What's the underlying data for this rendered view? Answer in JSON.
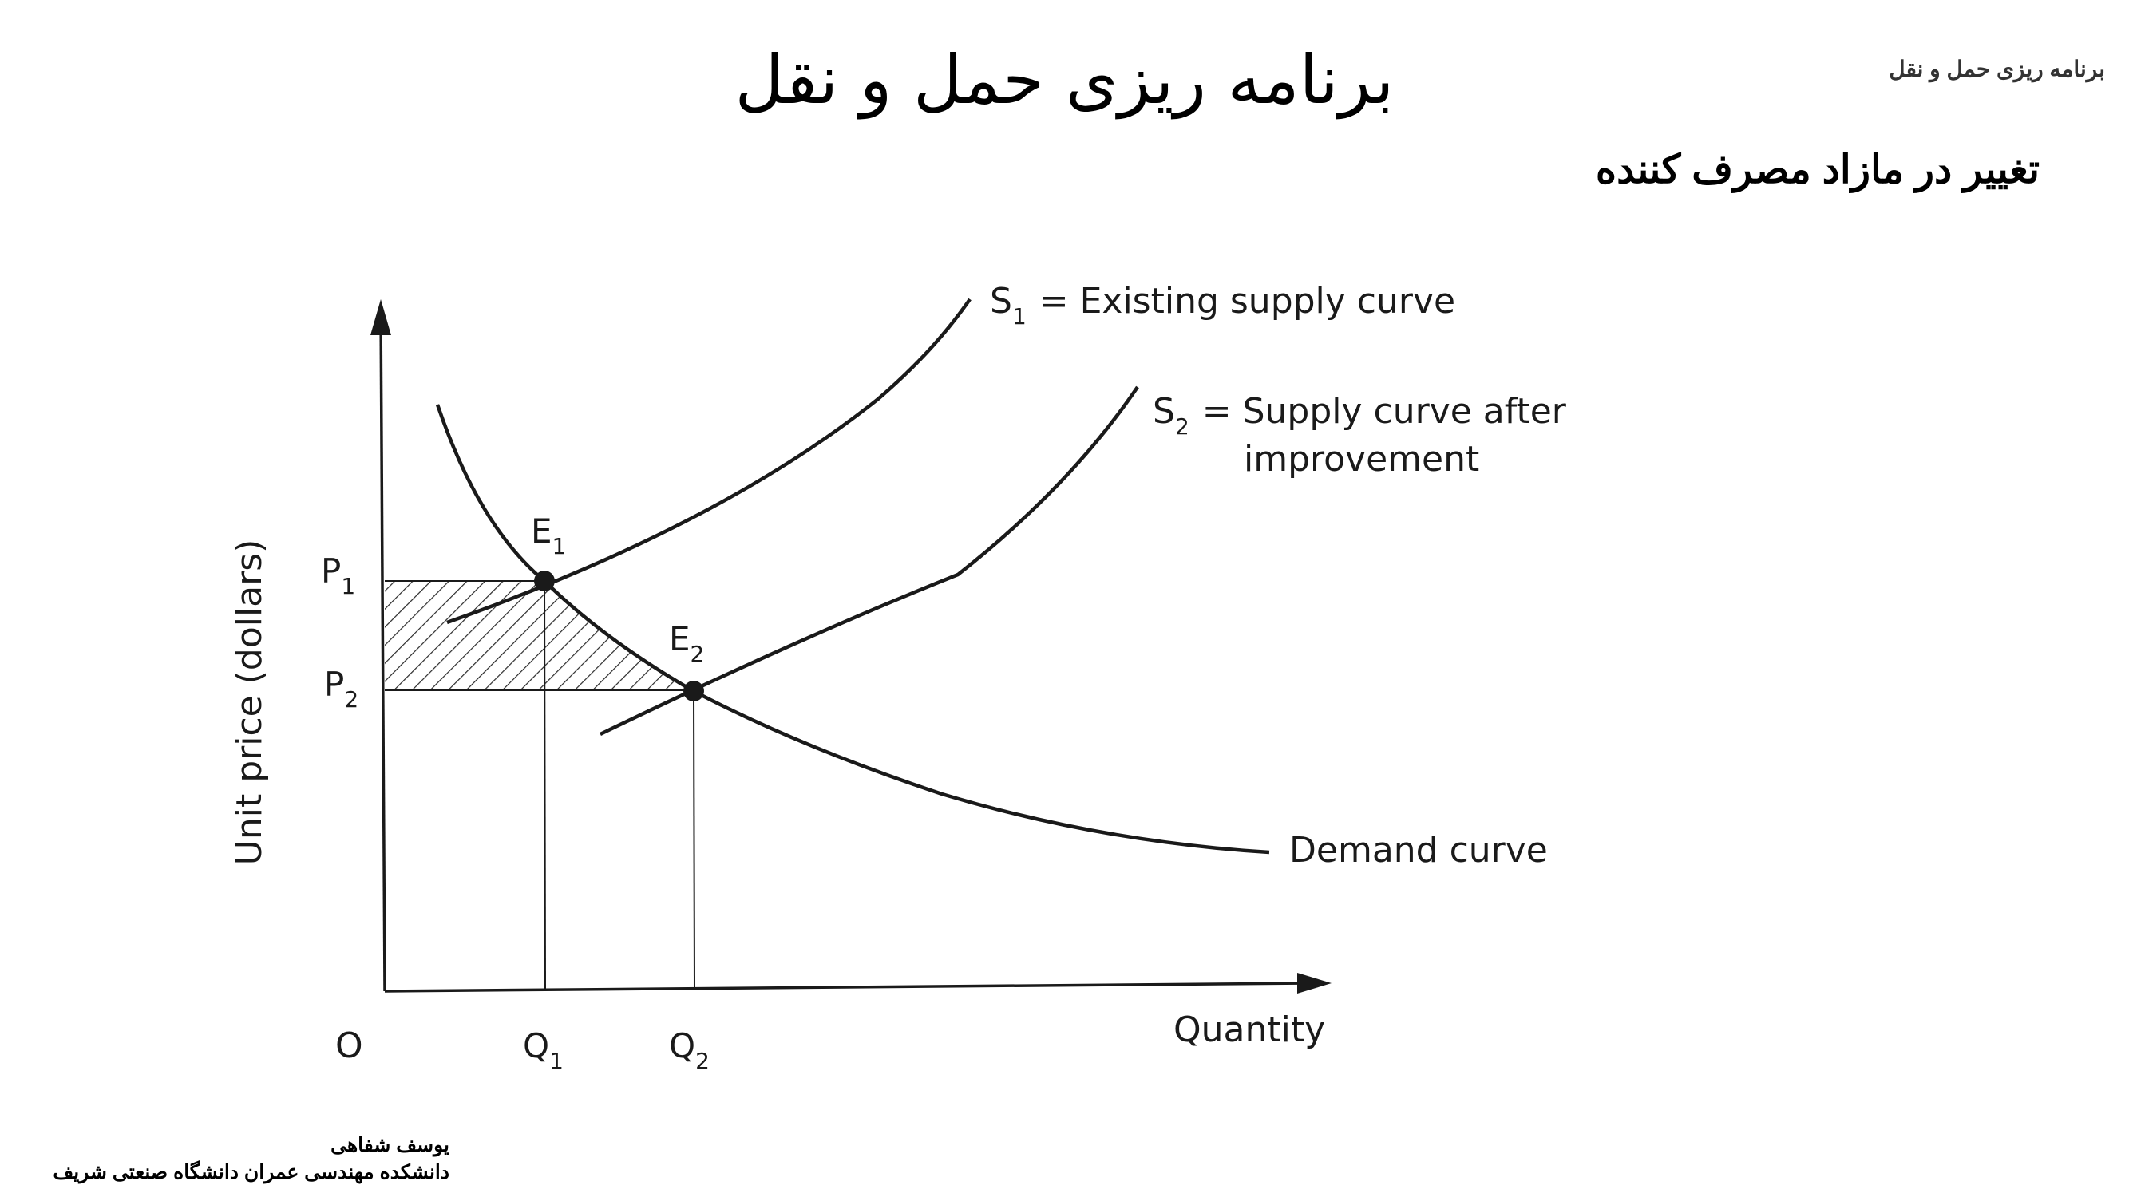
{
  "slide": {
    "title": "برنامه ریزی حمل و نقل",
    "header_note": "برنامه ریزی حمل و نقل",
    "subtitle": "تغییر در مازاد مصرف کننده"
  },
  "footer": {
    "author": "یوسف شفاهی",
    "affiliation": "دانشکده مهندسی عمران  دانشگاه صنعتی شریف"
  },
  "diagram": {
    "y_axis_label": "Unit price (dollars)",
    "x_axis_label": "Quantity",
    "origin_label": "O",
    "curves": {
      "s1_label": "= Existing supply curve",
      "s2_label_line1": "= Supply curve after",
      "s2_label_line2": "improvement",
      "demand_label": "Demand curve"
    },
    "points": {
      "e1": "E",
      "e2": "E",
      "p1": "P",
      "p2": "P",
      "q1": "Q",
      "q2": "Q",
      "s1": "S",
      "s2": "S"
    },
    "subscripts": {
      "one": "1",
      "two": "2"
    },
    "line_color": "#1a1a1a",
    "shade_color": "#2a2a2a"
  }
}
